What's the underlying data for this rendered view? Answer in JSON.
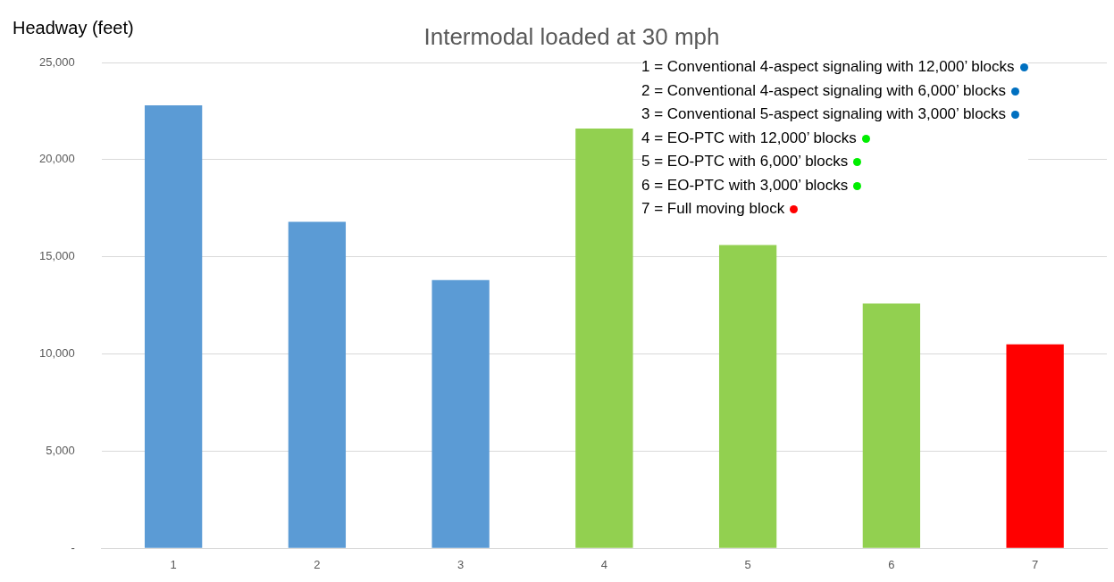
{
  "chart_data": {
    "type": "bar",
    "title": "Intermodal loaded at 30 mph",
    "ylabel": "Headway (feet)",
    "categories": [
      "1",
      "2",
      "3",
      "4",
      "5",
      "6",
      "7"
    ],
    "values": [
      22800,
      16800,
      13800,
      21600,
      15600,
      12600,
      10500
    ],
    "colors": [
      "#5b9bd5",
      "#5b9bd5",
      "#5b9bd5",
      "#92d050",
      "#92d050",
      "#92d050",
      "#ff0000"
    ],
    "ylim": [
      0,
      25000
    ],
    "yticks": [
      {
        "value": 0,
        "label": "-"
      },
      {
        "value": 5000,
        "label": "5,000"
      },
      {
        "value": 10000,
        "label": "10,000"
      },
      {
        "value": 15000,
        "label": "15,000"
      },
      {
        "value": 20000,
        "label": "20,000"
      },
      {
        "value": 25000,
        "label": "25,000"
      }
    ],
    "grid": "y",
    "legend": false,
    "annotations": [
      "1 = Conventional 4-aspect signaling with 12,000’ blocks",
      "2 = Conventional 4-aspect signaling with 6,000’ blocks",
      "3 = Conventional 5-aspect signaling with 3,000’ blocks",
      "4 = EO-PTC with 12,000’ blocks",
      "5 = EO-PTC with 6,000’ blocks",
      "6 = EO-PTC with 3,000’ blocks",
      "7 = Full moving block"
    ]
  }
}
